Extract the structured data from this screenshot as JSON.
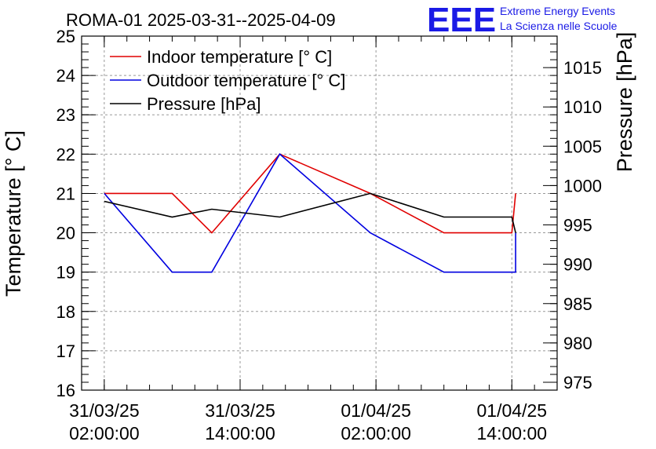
{
  "title": "ROMA-01 2025-03-31--2025-04-09",
  "logo": {
    "mark": "EEE",
    "line1": "Extreme Energy Events",
    "line2": "La Scienza nelle Scuole"
  },
  "colors": {
    "indoor": "#e00000",
    "outdoor": "#0000e0",
    "pressure": "#000000",
    "logo": "#1a1ae6"
  },
  "chart_data": {
    "type": "line",
    "ylabel_left": "Temperature [° C]",
    "ylabel_right": "Pressure [hPa]",
    "xlabel": "",
    "ylim_left": [
      16,
      25
    ],
    "ylim_right": [
      974,
      1019
    ],
    "xlim": [
      "31/03/25 00:00:00",
      "01/04/25 18:00:00"
    ],
    "grid": true,
    "legend_position": "top-left",
    "left_ticks": [
      16,
      17,
      18,
      19,
      20,
      21,
      22,
      23,
      24,
      25
    ],
    "right_ticks": [
      975,
      980,
      985,
      990,
      995,
      1000,
      1005,
      1010,
      1015
    ],
    "x_ticks": [
      {
        "value": "31/03/25 02:00:00",
        "line1": "31/03/25",
        "line2": "02:00:00"
      },
      {
        "value": "31/03/25 14:00:00",
        "line1": "31/03/25",
        "line2": "14:00:00"
      },
      {
        "value": "01/04/25 02:00:00",
        "line1": "01/04/25",
        "line2": "02:00:00"
      },
      {
        "value": "01/04/25 14:00:00",
        "line1": "01/04/25",
        "line2": "14:00:00"
      }
    ],
    "series": [
      {
        "name": "Indoor temperature [° C]",
        "axis": "left",
        "x": [
          "31/03/25 02:00:00",
          "31/03/25 08:00:00",
          "31/03/25 11:30:00",
          "31/03/25 17:30:00",
          "01/04/25 01:30:00",
          "01/04/25 08:00:00",
          "01/04/25 14:00:00",
          "01/04/25 14:20:00"
        ],
        "values": [
          21,
          21,
          20,
          22,
          21,
          20,
          20,
          21
        ]
      },
      {
        "name": "Outdoor temperature [° C]",
        "axis": "left",
        "x": [
          "31/03/25 02:00:00",
          "31/03/25 08:00:00",
          "31/03/25 11:30:00",
          "31/03/25 17:30:00",
          "01/04/25 01:30:00",
          "01/04/25 08:00:00",
          "01/04/25 14:00:00",
          "01/04/25 14:20:00",
          "01/04/25 14:20:00"
        ],
        "values": [
          21,
          19,
          19,
          22,
          20,
          19,
          19,
          19,
          20
        ]
      },
      {
        "name": "Pressure [hPa]",
        "axis": "right",
        "x": [
          "31/03/25 02:00:00",
          "31/03/25 08:00:00",
          "31/03/25 11:30:00",
          "31/03/25 17:30:00",
          "01/04/25 01:30:00",
          "01/04/25 08:00:00",
          "01/04/25 14:00:00",
          "01/04/25 14:20:00"
        ],
        "values": [
          998,
          996,
          997,
          996,
          999,
          996,
          996,
          994
        ]
      }
    ]
  }
}
